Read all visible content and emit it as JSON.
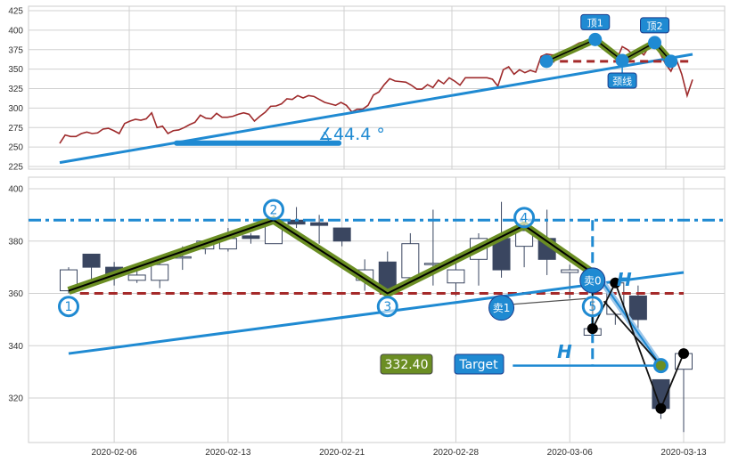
{
  "colors": {
    "accent_blue": "#1f8ad2",
    "neckline_red": "#a52a2a",
    "zigzag_green": "#6b8e23",
    "candle_down": "#3a4660",
    "price_line": "#9e2a2b",
    "grid": "#d0d0d0"
  },
  "chart_data": [
    {
      "type": "line",
      "panel": "top",
      "yticks": [
        225,
        250,
        275,
        300,
        325,
        350,
        375,
        400,
        425
      ],
      "ylim": [
        222,
        430
      ],
      "grid": true,
      "close": [
        254.7,
        265.4,
        263.5,
        263.5,
        267.3,
        269.2,
        267.3,
        268.1,
        273.0,
        274.1,
        271.0,
        267.3,
        280.2,
        283.3,
        285.6,
        284.4,
        286.3,
        293.9,
        274.9,
        276.8,
        267.3,
        271.0,
        271.9,
        274.9,
        278.7,
        281.8,
        290.9,
        287.1,
        286.3,
        293.2,
        288.2,
        288.2,
        289.4,
        292.0,
        293.9,
        292.0,
        283.3,
        289.4,
        294.7,
        302.3,
        302.7,
        305.4,
        311.9,
        311.1,
        316.0,
        313.0,
        316.0,
        314.9,
        311.1,
        307.3,
        305.4,
        303.5,
        307.3,
        303.5,
        295.1,
        298.5,
        298.5,
        303.5,
        316.8,
        320.6,
        330.1,
        337.8,
        334.7,
        334.0,
        333.2,
        329.4,
        324.4,
        324.4,
        330.1,
        326.3,
        335.9,
        331.3,
        338.9,
        334.7,
        329.4,
        338.9,
        338.9,
        338.9,
        338.9,
        338.9,
        337.0,
        328.2,
        349.2,
        353.0,
        343.5,
        349.2,
        345.4,
        348.4,
        346.1,
        366.3,
        369.3,
        368.2,
        368.2,
        372.0,
        375.8,
        379.7,
        383.5,
        385.4,
        387.3,
        386.5,
        383.5,
        375.8,
        368.2,
        362.5,
        378.9,
        375.0,
        368.2,
        374.0,
        368.2,
        379.7,
        381.6,
        370.1,
        356.8,
        347.3,
        362.5,
        343.5,
        316.0,
        336.6
      ],
      "trendline": {
        "from": [
          0,
          230
        ],
        "to": [
          117,
          369
        ]
      },
      "angle_base": {
        "from": [
          21.6,
          255
        ],
        "to": [
          51.6,
          255
        ]
      },
      "angle_label": "∡44.4 °",
      "neckline": {
        "from": 90,
        "to": 117,
        "value": 360
      },
      "pattern_points": [
        [
          90,
          360
        ],
        [
          99,
          388
        ],
        [
          104,
          361
        ],
        [
          110,
          384
        ],
        [
          113,
          360
        ]
      ],
      "annotations": [
        {
          "text": "顶1",
          "point": 1
        },
        {
          "text": "颈线",
          "point": 2
        },
        {
          "text": "顶2",
          "point": 3
        }
      ]
    },
    {
      "type": "candlestick",
      "panel": "bottom",
      "yticks": [
        320,
        340,
        360,
        380,
        400
      ],
      "ylim": [
        302,
        404
      ],
      "grid": true,
      "xticks": [
        {
          "index": 2,
          "label": "2020-02-06"
        },
        {
          "index": 7,
          "label": "2020-02-13"
        },
        {
          "index": 12,
          "label": "2020-02-21"
        },
        {
          "index": 17,
          "label": "2020-02-28"
        },
        {
          "index": 22,
          "label": "2020-03-06"
        },
        {
          "index": 27,
          "label": "2020-03-13"
        }
      ],
      "ohlc": [
        [
          361,
          370,
          360,
          369
        ],
        [
          375,
          375,
          365,
          370
        ],
        [
          370,
          372,
          363,
          367
        ],
        [
          365,
          371,
          364,
          367
        ],
        [
          365,
          374,
          362,
          371
        ],
        [
          373.5,
          378,
          369,
          374
        ],
        [
          377,
          380,
          375,
          380
        ],
        [
          377,
          385,
          376,
          381
        ],
        [
          382,
          383,
          379,
          381
        ],
        [
          379,
          390,
          379,
          388
        ],
        [
          388,
          393,
          385,
          386.5
        ],
        [
          387,
          390,
          379,
          386
        ],
        [
          385,
          385,
          378,
          380
        ],
        [
          365,
          373,
          361,
          369
        ],
        [
          372,
          376,
          360,
          362
        ],
        [
          366,
          383,
          364,
          379
        ],
        [
          371,
          392,
          363,
          371.5
        ],
        [
          364,
          375,
          359,
          369
        ],
        [
          373,
          383,
          363,
          381
        ],
        [
          381,
          395,
          366,
          369
        ],
        [
          378,
          386,
          370,
          384
        ],
        [
          381,
          392,
          367,
          373
        ],
        [
          368,
          371,
          358,
          369
        ],
        [
          344,
          352,
          344,
          346.5
        ],
        [
          352,
          366,
          348,
          364
        ],
        [
          359,
          363,
          346,
          350
        ],
        [
          327,
          327,
          312,
          316
        ],
        [
          331,
          337,
          307,
          337
        ]
      ],
      "resistance": 388,
      "neckline": {
        "from": 0.5,
        "to": 27,
        "value": 360
      },
      "trendline": {
        "from": [
          0,
          337
        ],
        "to": [
          27,
          368
        ]
      },
      "zigzag": [
        [
          0,
          361
        ],
        [
          9,
          388
        ],
        [
          14,
          360
        ],
        [
          20,
          386
        ],
        [
          23.3,
          366
        ]
      ],
      "projection": [
        [
          23.3,
          366
        ],
        [
          26,
          332.4
        ]
      ],
      "wave_path": [
        [
          23,
          365
        ],
        [
          23,
          346.5
        ],
        [
          24,
          364
        ],
        [
          26,
          316
        ],
        [
          27,
          337
        ]
      ],
      "wave_path2": [
        [
          23.5,
          357
        ],
        [
          26,
          332.4
        ]
      ],
      "wave_dots": [
        [
          23,
          346.5
        ],
        [
          24,
          364
        ],
        [
          26,
          316
        ],
        [
          27,
          337
        ]
      ],
      "wave_labels": [
        {
          "text": "1",
          "at": [
            0,
            355
          ]
        },
        {
          "text": "2",
          "at": [
            9,
            392
          ]
        },
        {
          "text": "3",
          "at": [
            14,
            355
          ]
        },
        {
          "text": "4",
          "at": [
            20,
            389
          ]
        },
        {
          "text": "5",
          "at": [
            23,
            355
          ]
        }
      ],
      "measure_line": {
        "index": 23,
        "from": 388,
        "to": 332.4
      },
      "target": {
        "label": "Target",
        "value_label": "332.40",
        "value": 332.4,
        "line_from": 19.5,
        "to_index": 26
      },
      "h_labels": [
        "H",
        "H"
      ],
      "sell_labels": [
        {
          "text": "卖1",
          "at": [
            19,
            354.5
          ],
          "pointer": [
            22.7,
            358
          ]
        },
        {
          "text": "卖0",
          "at": [
            23,
            365
          ]
        }
      ]
    }
  ]
}
